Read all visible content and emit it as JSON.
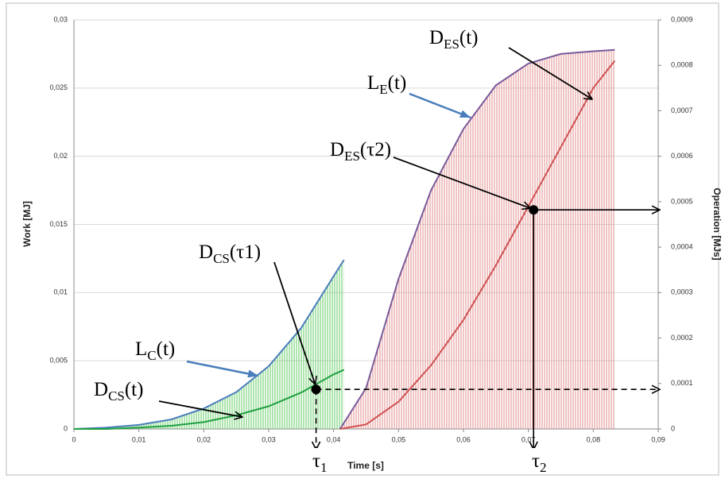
{
  "chart_data": {
    "type": "line",
    "xlabel": "Time [s]",
    "ylabel": "Work [MJ]",
    "y2label": "Operation [MJs]",
    "xlim": [
      0,
      0.09
    ],
    "ylim": [
      0,
      0.03
    ],
    "y2lim": [
      0,
      0.0009
    ],
    "xticks": [
      0,
      {
        "value": 0.01,
        "label": "0,01"
      },
      {
        "value": 0.02,
        "label": "0,02"
      },
      {
        "value": 0.03,
        "label": "0,03"
      },
      {
        "value": 0.04,
        "label": "0,04"
      },
      {
        "value": 0.05,
        "label": "0,05"
      },
      {
        "value": 0.06,
        "label": "0,06"
      },
      {
        "value": 0.07,
        "label": "0,07"
      },
      {
        "value": 0.08,
        "label": "0,08"
      },
      {
        "value": 0.09,
        "label": "0,09"
      }
    ],
    "yticks": [
      0,
      {
        "value": 0.005,
        "label": "0,005"
      },
      {
        "value": 0.01,
        "label": "0,01"
      },
      {
        "value": 0.015,
        "label": "0,015"
      },
      {
        "value": 0.02,
        "label": "0,02"
      },
      {
        "value": 0.025,
        "label": "0,025"
      },
      {
        "value": 0.03,
        "label": "0,03"
      }
    ],
    "y2ticks": [
      0,
      {
        "value": 0.0001,
        "label": "0,0001"
      },
      {
        "value": 0.0002,
        "label": "0,0002"
      },
      {
        "value": 0.0003,
        "label": "0,0003"
      },
      {
        "value": 0.0004,
        "label": "0,0004"
      },
      {
        "value": 0.0005,
        "label": "0,0005"
      },
      {
        "value": 0.0006,
        "label": "0,0006"
      },
      {
        "value": 0.0007,
        "label": "0,0007"
      },
      {
        "value": 0.0008,
        "label": "0,0008"
      },
      {
        "value": 0.0009,
        "label": "0,0009"
      }
    ],
    "grid": true,
    "series": [
      {
        "color": "#4a7ebb",
        "fill": "#5cc85c",
        "axis": "y",
        "x": [
          0,
          0.005,
          0.01,
          0.015,
          0.02,
          0.025,
          0.03,
          0.035,
          0.04,
          0.0416
        ],
        "values": [
          0,
          0.0001,
          0.0003,
          0.0007,
          0.0015,
          0.0027,
          0.0046,
          0.0074,
          0.0112,
          0.0124
        ]
      },
      {
        "color": "#1fa040",
        "axis": "y2",
        "x": [
          0,
          0.005,
          0.01,
          0.015,
          0.02,
          0.025,
          0.03,
          0.035,
          0.04,
          0.0416
        ],
        "values": [
          0,
          0,
          3e-06,
          7e-06,
          1.5e-05,
          3e-05,
          5e-05,
          8e-05,
          0.00012,
          0.00013
        ]
      },
      {
        "color": "#7a5a9a",
        "fill": "#e28a8a",
        "axis": "y",
        "x": [
          0.041,
          0.045,
          0.05,
          0.055,
          0.06,
          0.065,
          0.07,
          0.075,
          0.08,
          0.0833
        ],
        "values": [
          0,
          0.003,
          0.011,
          0.0175,
          0.022,
          0.0252,
          0.0268,
          0.0275,
          0.0277,
          0.0278
        ]
      },
      {
        "color": "#d05050",
        "axis": "y2",
        "x": [
          0.041,
          0.045,
          0.05,
          0.055,
          0.06,
          0.065,
          0.07,
          0.075,
          0.08,
          0.0833
        ],
        "values": [
          0,
          1e-05,
          6e-05,
          0.00014,
          0.00024,
          0.00036,
          0.00049,
          0.00062,
          0.00075,
          0.00081
        ]
      }
    ],
    "points": [
      {
        "x": 0.0373,
        "y": 8.7e-05
      },
      {
        "x": 0.0708,
        "y": 0.000482
      }
    ],
    "annotations": [
      {
        "base": "D",
        "sub": "ES",
        "tail": "(t)"
      },
      {
        "base": "L",
        "sub": "E",
        "tail": "(t)"
      },
      {
        "base": "D",
        "sub": "ES",
        "tail": "(τ2)"
      },
      {
        "base": "D",
        "sub": "CS",
        "tail": "(τ1)"
      },
      {
        "base": "L",
        "sub": "C",
        "tail": "(t)"
      },
      {
        "base": "D",
        "sub": "CS",
        "tail": "(t)"
      },
      {
        "base": "τ",
        "sub": "1"
      },
      {
        "base": "τ",
        "sub": "2"
      }
    ]
  }
}
